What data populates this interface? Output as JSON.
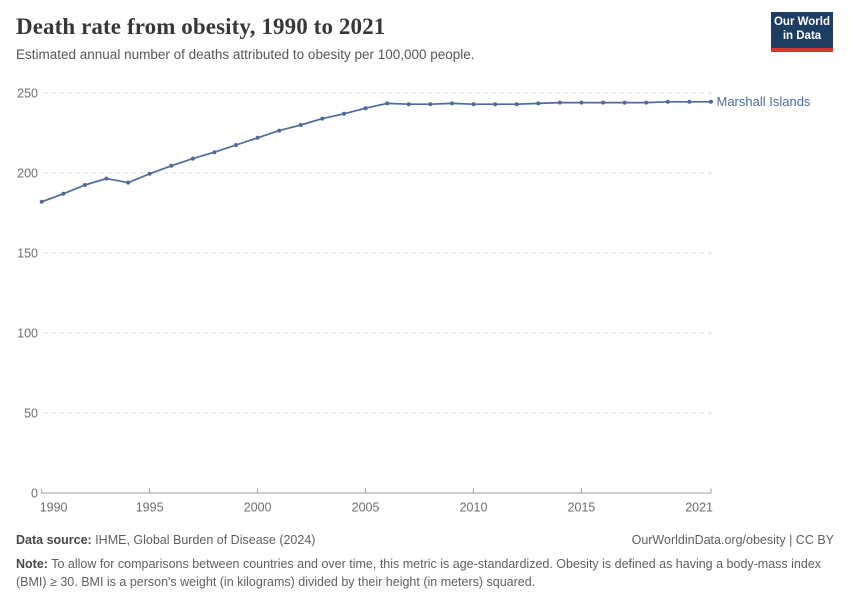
{
  "header": {
    "title": "Death rate from obesity, 1990 to 2021",
    "subtitle": "Estimated annual number of deaths attributed to obesity per 100,000 people.",
    "logo": {
      "line1": "Our World",
      "line2": "in Data",
      "bg_color": "#1d3d63",
      "accent_color": "#d7362c"
    }
  },
  "chart_data": {
    "type": "line",
    "title": "Death rate from obesity, 1990 to 2021",
    "subtitle": "Estimated annual number of deaths attributed to obesity per 100,000 people.",
    "x": [
      1990,
      1991,
      1992,
      1993,
      1994,
      1995,
      1996,
      1997,
      1998,
      1999,
      2000,
      2001,
      2002,
      2003,
      2004,
      2005,
      2006,
      2007,
      2008,
      2009,
      2010,
      2011,
      2012,
      2013,
      2014,
      2015,
      2016,
      2017,
      2018,
      2019,
      2020,
      2021
    ],
    "series": [
      {
        "name": "Marshall Islands",
        "color": "#4c6a9c",
        "values": [
          182,
          187,
          192.5,
          196.5,
          194,
          199.5,
          204.5,
          209,
          213,
          217.5,
          222,
          226.5,
          230,
          234,
          237,
          240.5,
          243.5,
          243,
          243,
          243.5,
          243,
          243,
          243,
          243.5,
          244,
          244,
          244,
          244,
          244,
          244.5,
          244.5,
          244.5
        ]
      }
    ],
    "xlabel": "",
    "ylabel": "",
    "xlim": [
      1990,
      2021
    ],
    "ylim": [
      0,
      250
    ],
    "yticks": [
      0,
      50,
      100,
      150,
      200,
      250
    ],
    "xticks": [
      1990,
      1995,
      2000,
      2005,
      2010,
      2015,
      2021
    ],
    "grid": "horizontal-dashed",
    "legend_position": "end-of-line-label",
    "end_label": "Marshall Islands",
    "colors": {
      "line": "#4c6a9c",
      "gridline": "#dcdcdc",
      "axis": "#9e9e9e",
      "tick_text": "#6e6e6e"
    }
  },
  "footer": {
    "datasource_label": "Data source:",
    "datasource_value": " IHME, Global Burden of Disease (2024)",
    "link": "OurWorldinData.org/obesity | CC BY",
    "note_label": "Note:",
    "note_value": " To allow for comparisons between countries and over time, this metric is age-standardized. Obesity is defined as having a body-mass index (BMI) ≥ 30. BMI is a person's weight (in kilograms) divided by their height (in meters) squared."
  }
}
